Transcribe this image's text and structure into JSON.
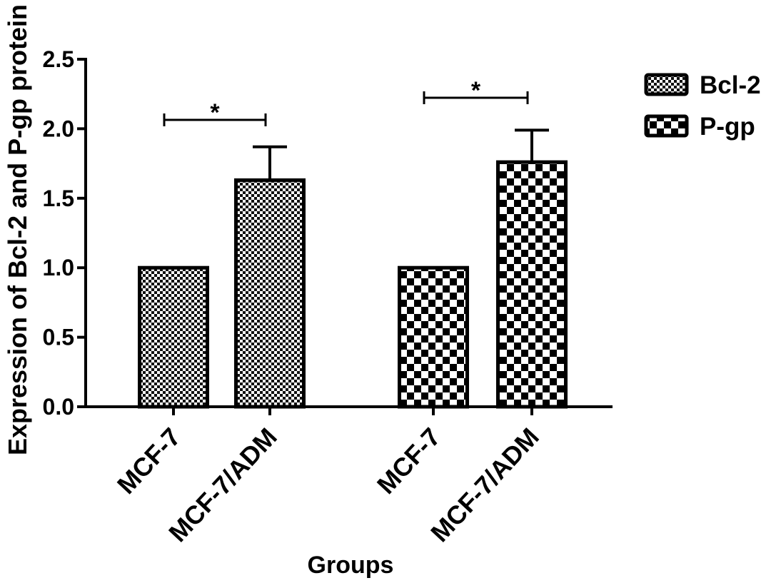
{
  "chart_data": {
    "type": "bar",
    "xlabel": "Groups",
    "ylabel": "Expression of Bcl-2 and P-gp protein",
    "ylim": [
      0,
      2.5
    ],
    "yticks": [
      "0.0",
      "0.5",
      "1.0",
      "1.5",
      "2.0",
      "2.5"
    ],
    "categories": [
      "MCF-7",
      "MCF-7/ADM"
    ],
    "series": [
      {
        "name": "Bcl-2",
        "values": [
          1.0,
          1.63
        ],
        "errors": [
          0,
          0.24
        ],
        "pattern": "checker-fine",
        "significance": {
          "between": [
            0,
            1
          ],
          "label": "*"
        }
      },
      {
        "name": "P-gp",
        "values": [
          1.0,
          1.76
        ],
        "errors": [
          0,
          0.23
        ],
        "pattern": "checker-coarse",
        "significance": {
          "between": [
            0,
            1
          ],
          "label": "*"
        }
      }
    ],
    "legend": {
      "position": "top-right"
    },
    "grid": false
  }
}
